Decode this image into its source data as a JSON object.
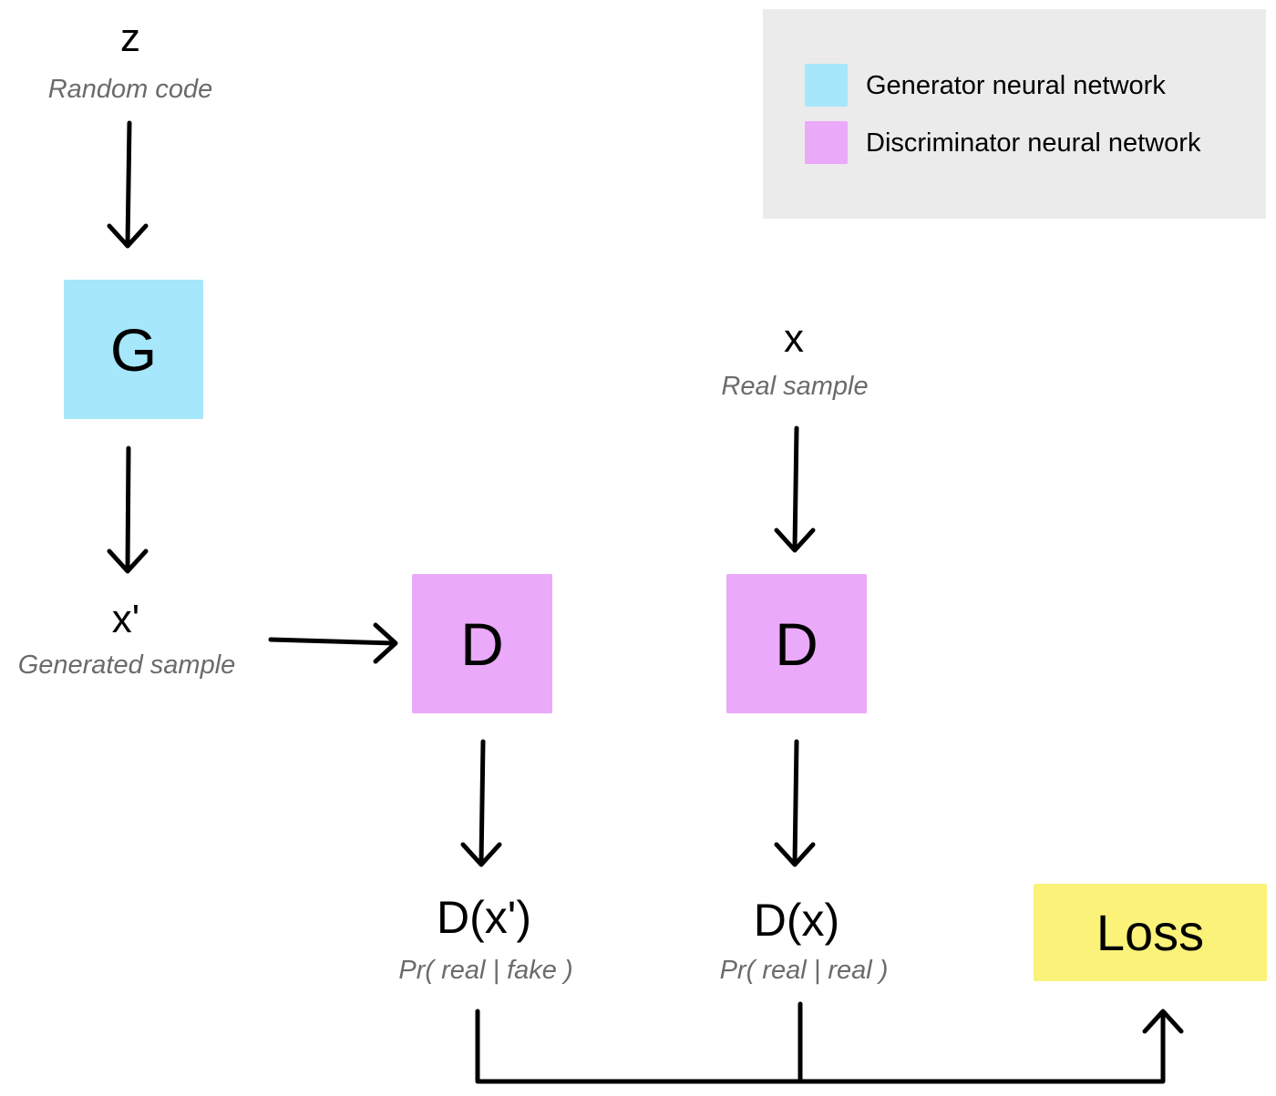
{
  "colors": {
    "generator": "#a6e7fb",
    "discriminator": "#eaa9f9",
    "loss": "#fbf27a",
    "legend_bg": "#ebebeb",
    "caption": "#6b6b6b"
  },
  "legend": {
    "items": [
      {
        "label": "Generator neural network",
        "color": "#a6e7fb"
      },
      {
        "label": "Discriminator neural network",
        "color": "#eaa9f9"
      }
    ]
  },
  "nodes": {
    "z": {
      "symbol": "z",
      "caption": "Random code"
    },
    "generator": {
      "label": "G"
    },
    "x_prime": {
      "symbol": "x'",
      "caption": "Generated sample"
    },
    "x_real": {
      "symbol": "x",
      "caption": "Real sample"
    },
    "discriminator_fake": {
      "label": "D"
    },
    "discriminator_real": {
      "label": "D"
    },
    "output_fake": {
      "label": "D(x')",
      "caption": "Pr( real | fake )"
    },
    "output_real": {
      "label": "D(x)",
      "caption": "Pr( real | real )"
    },
    "loss": {
      "label": "Loss"
    }
  }
}
